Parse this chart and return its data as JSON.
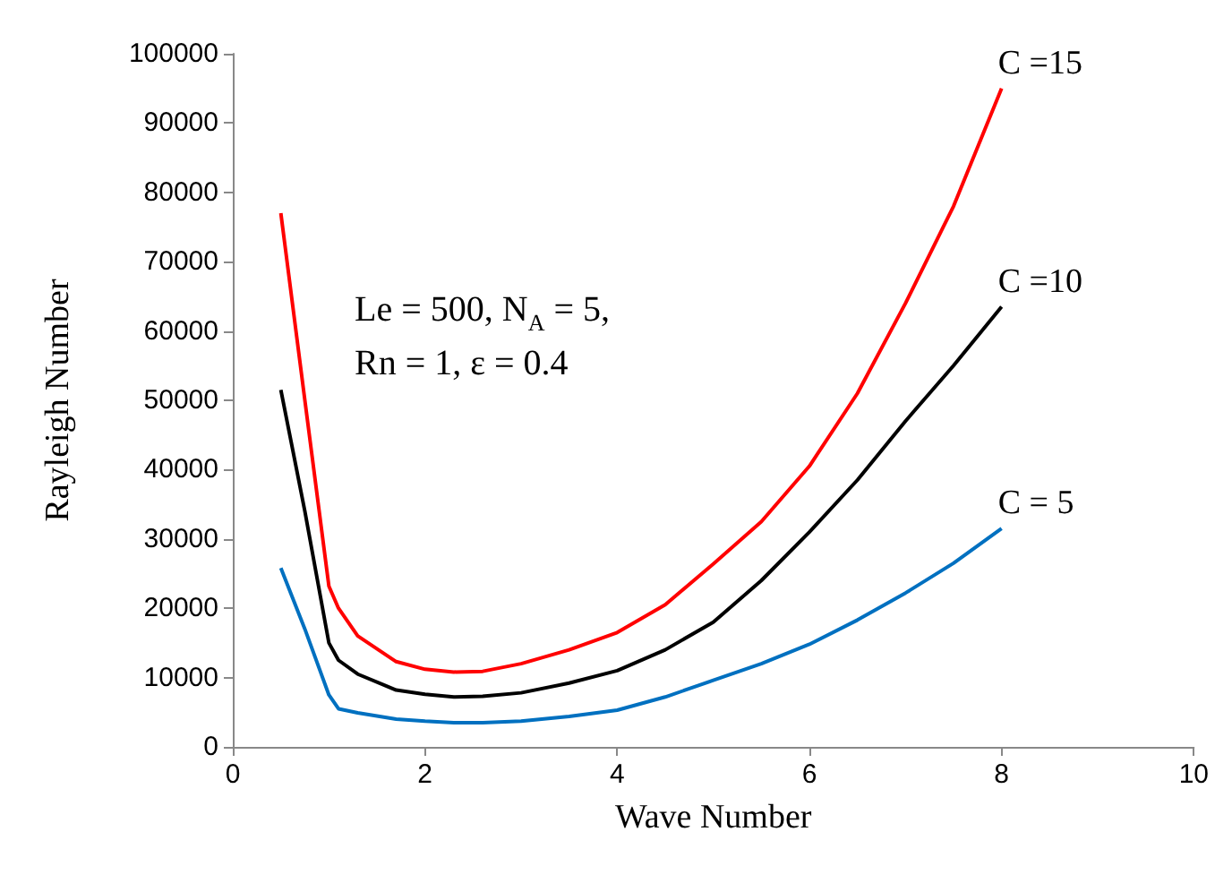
{
  "chart_data": {
    "type": "line",
    "xlabel": "Wave Number",
    "ylabel": "Rayleigh Number",
    "xlim": [
      0,
      10
    ],
    "xticks": [
      0,
      2,
      4,
      6,
      8,
      10
    ],
    "ylim": [
      0,
      100000
    ],
    "yticks": [
      0,
      10000,
      20000,
      30000,
      40000,
      50000,
      60000,
      70000,
      80000,
      90000,
      100000
    ],
    "grid": false,
    "legend": false,
    "marker": "none",
    "line_style": "solid",
    "annotations": [
      "Le = 500, N$_{A}$ = 5,",
      "Rn = 1, ε = 0.4"
    ],
    "x": [
      0.5,
      0.75,
      1,
      1.1,
      1.3,
      1.7,
      2,
      2.3,
      2.6,
      3,
      3.5,
      4,
      4.5,
      5,
      5.5,
      6,
      6.5,
      7,
      7.5,
      8
    ],
    "series": [
      {
        "name": "C =15",
        "color": "#ff0000",
        "values": [
          77000,
          50000,
          23200,
          20000,
          16000,
          12300,
          11200,
          10800,
          10900,
          12000,
          14000,
          16500,
          20500,
          26400,
          32500,
          40500,
          51000,
          64000,
          78000,
          95000
        ]
      },
      {
        "name": "C =10",
        "color": "#000000",
        "values": [
          51500,
          34000,
          15000,
          12500,
          10500,
          8200,
          7600,
          7200,
          7300,
          7800,
          9200,
          11000,
          14000,
          18000,
          24000,
          31000,
          38500,
          47000,
          55000,
          63500
        ]
      },
      {
        "name": "C = 5",
        "color": "#0070c0",
        "values": [
          25800,
          17000,
          7500,
          5500,
          4900,
          4000,
          3700,
          3500,
          3500,
          3700,
          4400,
          5300,
          7200,
          9600,
          12000,
          14800,
          18300,
          22200,
          26500,
          31500
        ]
      }
    ]
  }
}
